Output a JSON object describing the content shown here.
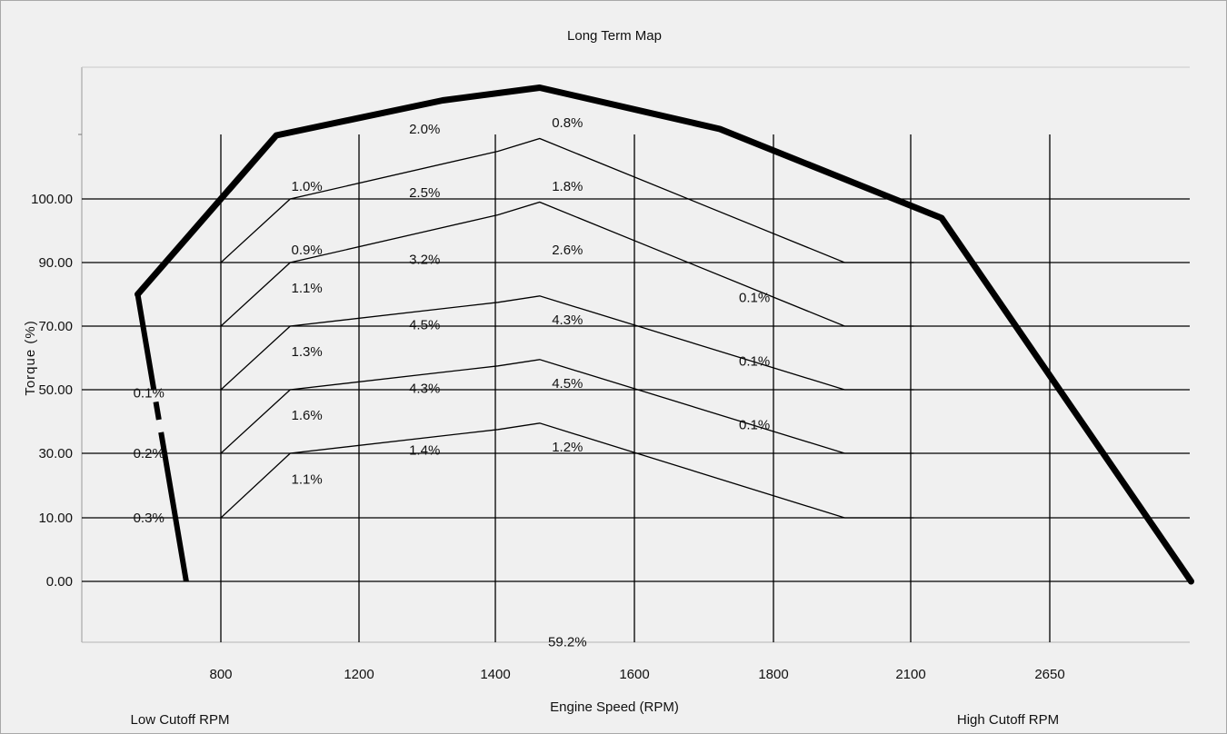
{
  "chart_data": {
    "type": "line",
    "title": "Long Term Map",
    "xlabel": "Engine Speed (RPM)",
    "ylabel": "Torque (%)",
    "x_tick_labels": [
      "800",
      "1200",
      "1400",
      "1600",
      "1800",
      "2100",
      "2650"
    ],
    "y_tick_labels": [
      "100.00",
      "90.00",
      "70.00",
      "50.00",
      "30.00",
      "10.00",
      "0.00"
    ],
    "y_ticks": [
      100,
      90,
      70,
      50,
      30,
      10,
      0
    ],
    "corner_labels": {
      "low_cutoff": "Low Cutoff RPM",
      "high_cutoff": "High Cutoff RPM"
    },
    "grid": true,
    "series": [
      {
        "role": "max-torque-curve",
        "points": [
          [
            -0.6,
            80
          ],
          [
            0.4,
            110
          ],
          [
            1.6,
            115.5
          ],
          [
            2.3,
            117.5
          ],
          [
            3.6,
            111
          ],
          [
            5.2,
            97
          ],
          [
            7.0,
            0
          ]
        ]
      },
      {
        "role": "low-cutoff-line",
        "points": [
          [
            -0.6,
            80
          ],
          [
            -0.25,
            0
          ]
        ]
      },
      {
        "role": "band-boundary-100",
        "points": [
          [
            0,
            90
          ],
          [
            0.5,
            100
          ],
          [
            2.0,
            107.5
          ],
          [
            2.3,
            109.5
          ],
          [
            4.5,
            90
          ],
          [
            5.0,
            90
          ]
        ]
      },
      {
        "role": "band-boundary-90",
        "points": [
          [
            0,
            70
          ],
          [
            0.5,
            90
          ],
          [
            2.0,
            97.5
          ],
          [
            2.3,
            99.5
          ],
          [
            4.5,
            70
          ],
          [
            5.0,
            70
          ]
        ]
      },
      {
        "role": "band-boundary-70",
        "points": [
          [
            0,
            50
          ],
          [
            0.5,
            70
          ],
          [
            2.0,
            77.5
          ],
          [
            2.3,
            79.5
          ],
          [
            4.5,
            50
          ],
          [
            5.0,
            50
          ]
        ]
      },
      {
        "role": "band-boundary-50",
        "points": [
          [
            0,
            30
          ],
          [
            0.5,
            50
          ],
          [
            2.0,
            57.5
          ],
          [
            2.3,
            59.5
          ],
          [
            4.5,
            30
          ],
          [
            5.0,
            30
          ]
        ]
      },
      {
        "role": "band-boundary-30",
        "points": [
          [
            0,
            10
          ],
          [
            0.5,
            30
          ],
          [
            2.0,
            37.5
          ],
          [
            2.3,
            39.5
          ],
          [
            4.5,
            10
          ],
          [
            5.0,
            10
          ]
        ]
      }
    ],
    "annotations": [
      {
        "text": "2.0%",
        "x": 1.47,
        "y": 111
      },
      {
        "text": "0.8%",
        "x": 2.5,
        "y": 112
      },
      {
        "text": "1.0%",
        "x": 0.62,
        "y": 102
      },
      {
        "text": "2.5%",
        "x": 1.47,
        "y": 101
      },
      {
        "text": "1.8%",
        "x": 2.5,
        "y": 102
      },
      {
        "text": "0.9%",
        "x": 0.62,
        "y": 92
      },
      {
        "text": "3.2%",
        "x": 1.47,
        "y": 90.5
      },
      {
        "text": "2.6%",
        "x": 2.5,
        "y": 92
      },
      {
        "text": "1.1%",
        "x": 0.62,
        "y": 82
      },
      {
        "text": "0.1%",
        "x": 3.85,
        "y": 79
      },
      {
        "text": "4.5%",
        "x": 1.47,
        "y": 70.5
      },
      {
        "text": "4.3%",
        "x": 2.5,
        "y": 72
      },
      {
        "text": "1.3%",
        "x": 0.62,
        "y": 62
      },
      {
        "text": "0.1%",
        "x": 3.85,
        "y": 59
      },
      {
        "text": "0.1%",
        "x": -0.52,
        "y": 49
      },
      {
        "text": "4.3%",
        "x": 1.47,
        "y": 50.5
      },
      {
        "text": "4.5%",
        "x": 2.5,
        "y": 52
      },
      {
        "text": "1.6%",
        "x": 0.62,
        "y": 42
      },
      {
        "text": "0.1%",
        "x": 3.85,
        "y": 39
      },
      {
        "text": "0.2%",
        "x": -0.52,
        "y": 30
      },
      {
        "text": "1.4%",
        "x": 1.47,
        "y": 31
      },
      {
        "text": "1.2%",
        "x": 2.5,
        "y": 32
      },
      {
        "text": "1.1%",
        "x": 0.62,
        "y": 22
      },
      {
        "text": "0.3%",
        "x": -0.52,
        "y": 10
      },
      {
        "text": "59.2%",
        "x": 2.5,
        "y": -9.5
      }
    ]
  }
}
